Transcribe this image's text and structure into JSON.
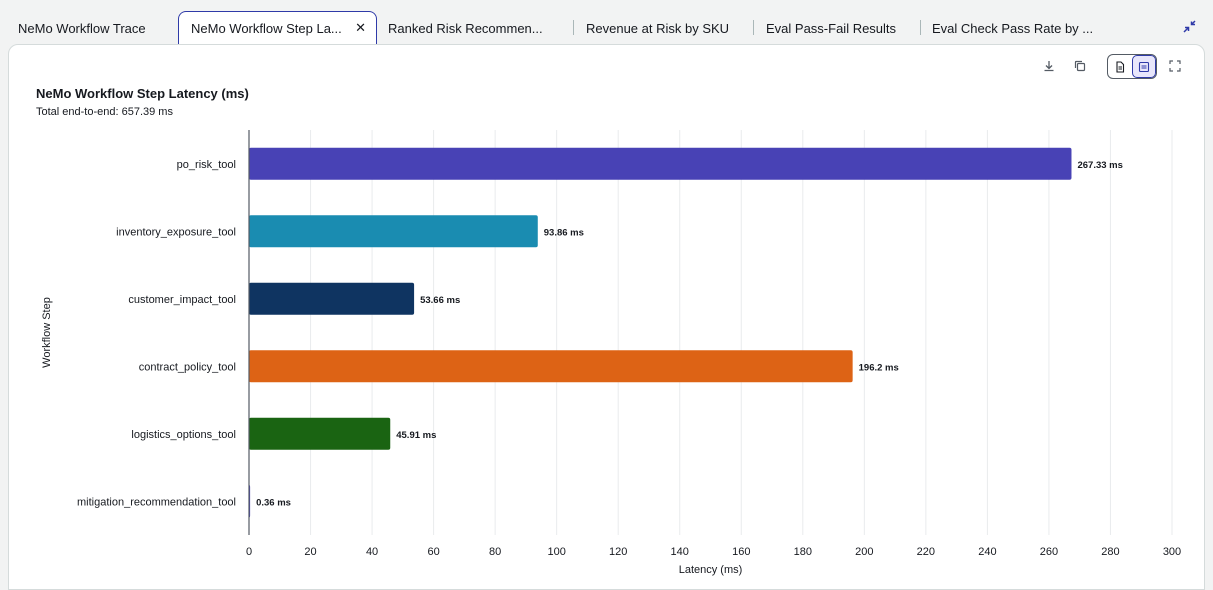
{
  "tabs": [
    {
      "label": "NeMo Workflow Trace",
      "active": false
    },
    {
      "label": "NeMo Workflow Step La...",
      "active": true
    },
    {
      "label": "Ranked Risk Recommen...",
      "active": false
    },
    {
      "label": "Revenue at Risk by SKU",
      "active": false
    },
    {
      "label": "Eval Pass-Fail Results",
      "active": false
    },
    {
      "label": "Eval Check Pass Rate by ...",
      "active": false
    }
  ],
  "icons": {
    "tab_close": "close-icon",
    "collapse": "collapse-icon",
    "download": "download-icon",
    "copy": "copy-icon",
    "document_view": "document-icon",
    "table_view": "table-icon",
    "expand": "expand-icon"
  },
  "colors": {
    "accent": "#2f3aa8"
  },
  "chart_data": {
    "type": "bar",
    "orientation": "horizontal",
    "title": "NeMo Workflow Step Latency (ms)",
    "subtitle": "Total end-to-end: 657.39 ms",
    "xlabel": "Latency (ms)",
    "ylabel": "Workflow Step",
    "xlim": [
      0,
      300
    ],
    "xticks": [
      0,
      20,
      40,
      60,
      80,
      100,
      120,
      140,
      160,
      180,
      200,
      220,
      240,
      260,
      280,
      300
    ],
    "grid": true,
    "categories": [
      "po_risk_tool",
      "inventory_exposure_tool",
      "customer_impact_tool",
      "contract_policy_tool",
      "logistics_options_tool",
      "mitigation_recommendation_tool"
    ],
    "values": [
      267.33,
      93.86,
      53.66,
      196.2,
      45.91,
      0.36
    ],
    "data_labels": [
      "267.33 ms",
      "93.86 ms",
      "53.66 ms",
      "196.2 ms",
      "45.91 ms",
      "0.36 ms"
    ],
    "bar_colors": [
      "#4842b5",
      "#1a8cb1",
      "#0f3461",
      "#dd6315",
      "#1a6412",
      "#4842b5"
    ]
  }
}
